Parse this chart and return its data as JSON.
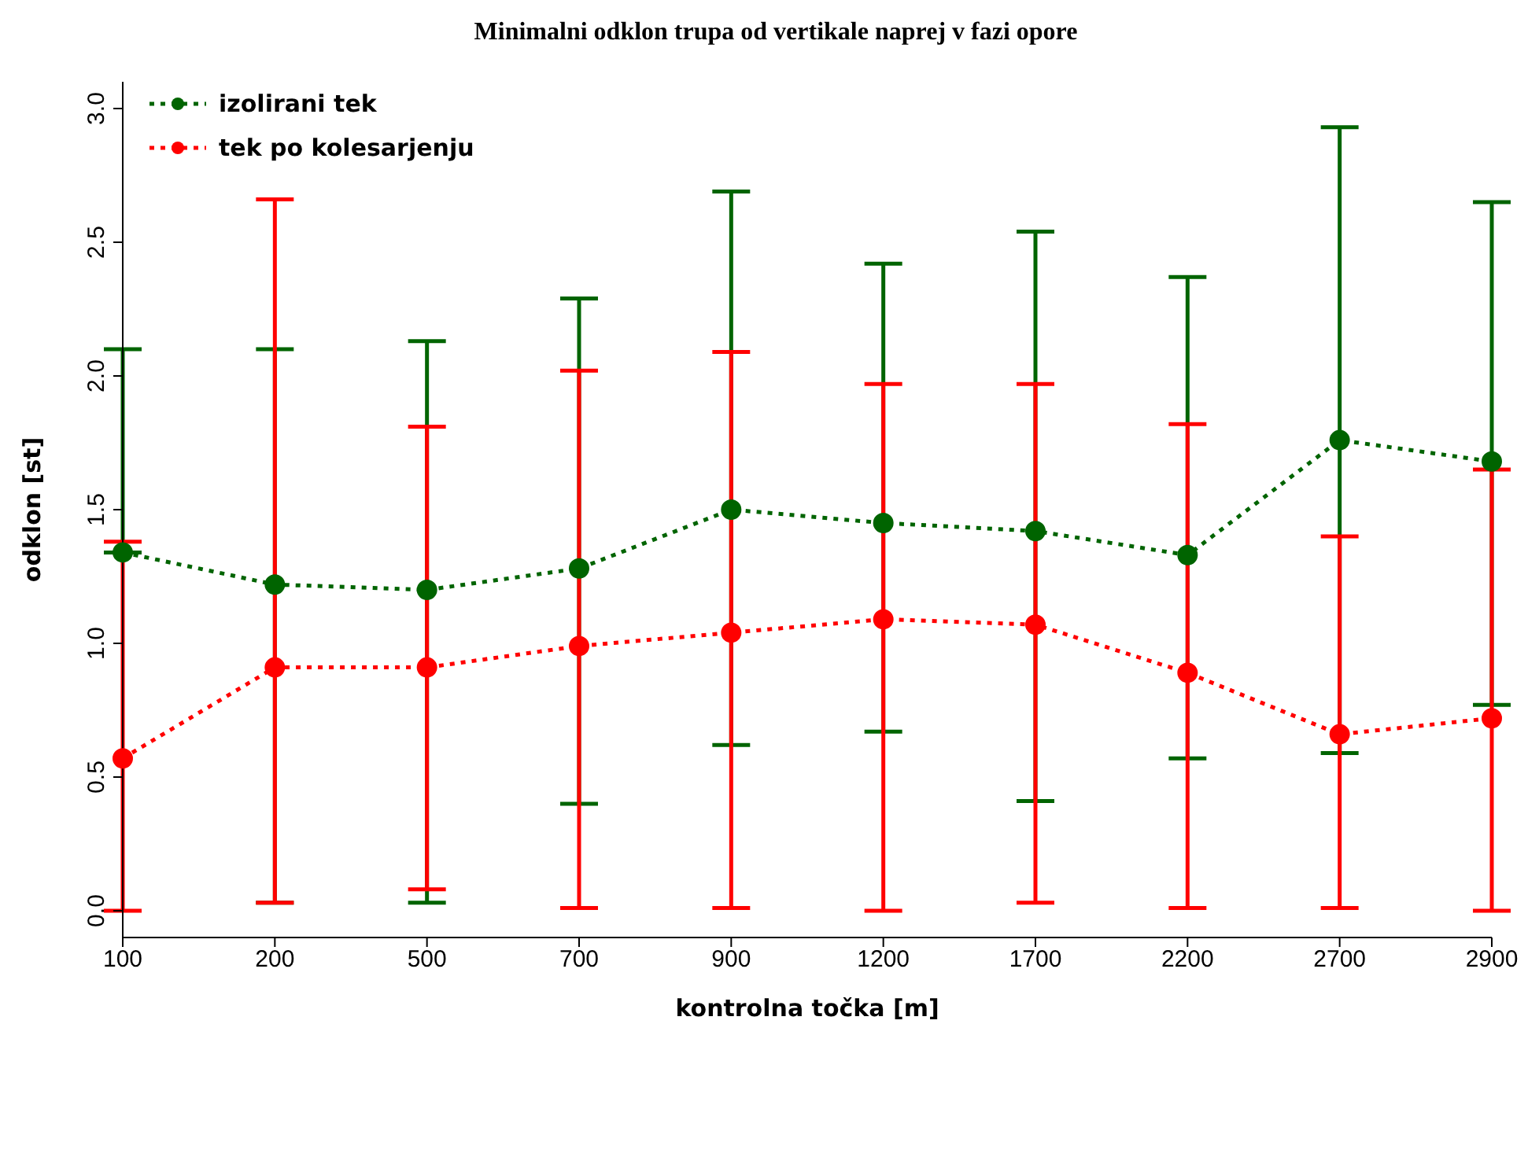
{
  "chart_data": {
    "type": "line",
    "title": "Minimalni odklon trupa od vertikale naprej v fazi opore",
    "xlabel": "kontrolna točka [m]",
    "ylabel": "odklon [st]",
    "categories": [
      "100",
      "200",
      "500",
      "700",
      "900",
      "1200",
      "1700",
      "2200",
      "2700",
      "2900"
    ],
    "series": [
      {
        "name": "izolirani tek",
        "color": "#006400",
        "values": [
          1.34,
          1.22,
          1.2,
          1.28,
          1.5,
          1.45,
          1.42,
          1.33,
          1.76,
          1.68
        ],
        "errors": [
          [
            1.34,
            2.1
          ],
          [
            0.03,
            2.1
          ],
          [
            0.03,
            2.13
          ],
          [
            0.4,
            2.29
          ],
          [
            0.62,
            2.69
          ],
          [
            0.67,
            2.42
          ],
          [
            0.41,
            2.54
          ],
          [
            0.57,
            2.37
          ],
          [
            0.59,
            2.93
          ],
          [
            0.77,
            2.65
          ]
        ]
      },
      {
        "name": "tek po kolesarjenju",
        "color": "#ff0000",
        "values": [
          0.57,
          0.91,
          0.91,
          0.99,
          1.04,
          1.09,
          1.07,
          0.89,
          0.66,
          0.72
        ],
        "errors": [
          [
            0.0,
            1.38
          ],
          [
            0.03,
            2.66
          ],
          [
            0.08,
            1.81
          ],
          [
            0.01,
            2.02
          ],
          [
            0.01,
            2.09
          ],
          [
            0.0,
            1.97
          ],
          [
            0.03,
            1.97
          ],
          [
            0.01,
            1.82
          ],
          [
            0.01,
            1.4
          ],
          [
            0.0,
            1.65
          ]
        ]
      }
    ],
    "ylim": [
      -0.1,
      3.1
    ],
    "yticks": [
      {
        "value": 0,
        "label": "0.0"
      },
      0.5,
      {
        "value": 1,
        "label": "1.0"
      },
      1.5,
      {
        "value": 2,
        "label": "2.0"
      },
      2.5,
      {
        "value": 3,
        "label": "3.0"
      }
    ],
    "grid": false,
    "legend": "top left",
    "marker": "circle",
    "line_style": "dotted"
  }
}
